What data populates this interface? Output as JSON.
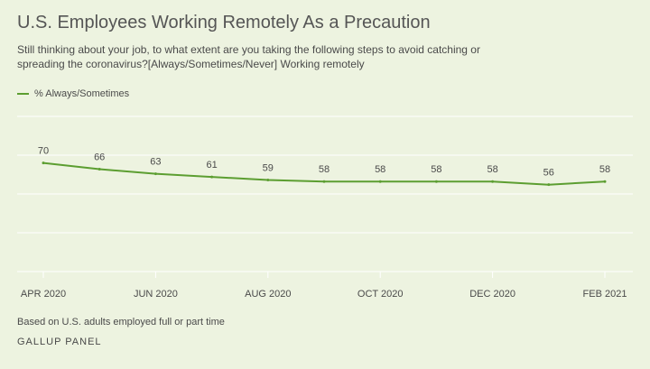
{
  "header": {
    "title": "U.S. Employees Working Remotely As a Precaution",
    "subtitle": "Still thinking about your job, to what extent are you taking the following steps to avoid catching or spreading the coronavirus?[Always/Sometimes/Never] Working remotely"
  },
  "footer": {
    "note": "Based on U.S. adults employed full or part time",
    "source": "GALLUP PANEL"
  },
  "colors": {
    "background": "#edf3e0",
    "series": "#5c9e31",
    "gridline": "#ffffff"
  },
  "chart_data": {
    "type": "line",
    "title": "U.S. Employees Working Remotely As a Precaution",
    "xlabel": "",
    "ylabel": "",
    "ylim": [
      0,
      100
    ],
    "grid": true,
    "legend_position": "top-left",
    "x": [
      "2020-04",
      "2020-05",
      "2020-06",
      "2020-07",
      "2020-08",
      "2020-09",
      "2020-10",
      "2020-11",
      "2020-12",
      "2021-01",
      "2021-02"
    ],
    "x_tick_labels": [
      "APR 2020",
      "JUN 2020",
      "AUG 2020",
      "OCT 2020",
      "DEC 2020",
      "FEB 2021"
    ],
    "x_tick_positions": [
      "2020-04",
      "2020-06",
      "2020-08",
      "2020-10",
      "2020-12",
      "2021-02"
    ],
    "series": [
      {
        "name": "% Always/Sometimes",
        "values": [
          70,
          66,
          63,
          61,
          59,
          58,
          58,
          58,
          58,
          56,
          58
        ],
        "labels": [
          "70",
          "66",
          "63",
          "61",
          "59",
          "58",
          "58",
          "58",
          "58",
          "56",
          "58"
        ]
      }
    ]
  }
}
